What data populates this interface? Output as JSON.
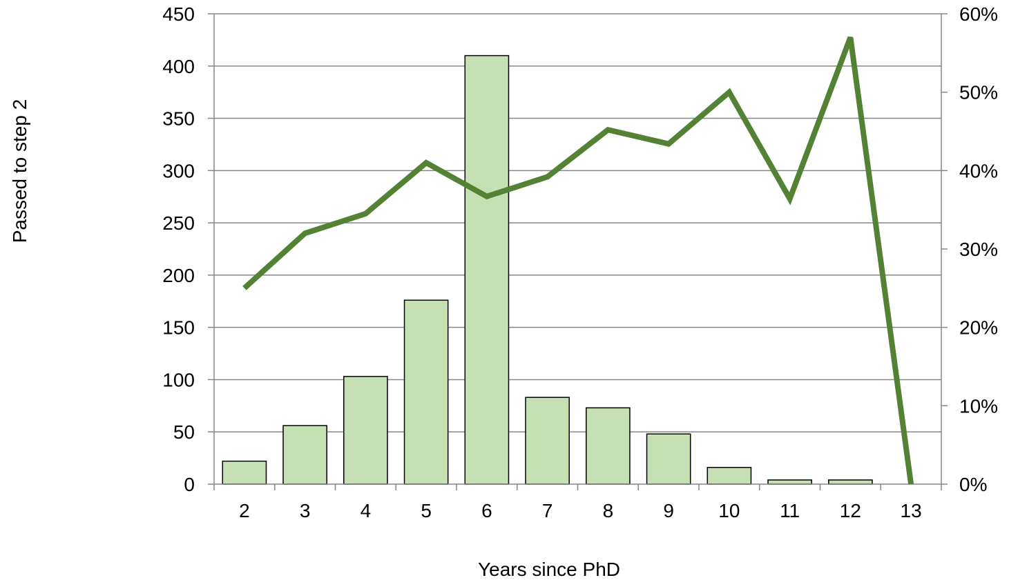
{
  "chart_data": {
    "type": "bar",
    "title": "",
    "xlabel": "Years since PhD",
    "ylabel": "Passed to step 2",
    "y2label": "",
    "categories": [
      "2",
      "3",
      "4",
      "5",
      "6",
      "7",
      "8",
      "9",
      "10",
      "11",
      "12",
      "13"
    ],
    "series": [
      {
        "type": "bar",
        "axis": "left",
        "values": [
          22,
          56,
          103,
          176,
          410,
          83,
          73,
          48,
          16,
          4,
          4,
          0
        ],
        "color": "#c6e0b4",
        "stroke": "#000000"
      },
      {
        "type": "line",
        "axis": "right",
        "values": [
          0.25,
          0.32,
          0.345,
          0.41,
          0.367,
          0.392,
          0.452,
          0.434,
          0.5,
          0.364,
          0.57,
          0.0
        ],
        "color": "#548235"
      }
    ],
    "ylim": [
      0,
      450
    ],
    "yticks": [
      "0",
      "50",
      "100",
      "150",
      "200",
      "250",
      "300",
      "350",
      "400",
      "450"
    ],
    "y2lim": [
      0,
      0.6
    ],
    "y2ticks": [
      "0%",
      "10%",
      "20%",
      "30%",
      "40%",
      "50%",
      "60%"
    ],
    "grid": true,
    "legend": "none",
    "colors": {
      "bar_fill": "#c6e0b4",
      "line": "#548235",
      "grid": "#868686",
      "axis": "#868686"
    }
  }
}
